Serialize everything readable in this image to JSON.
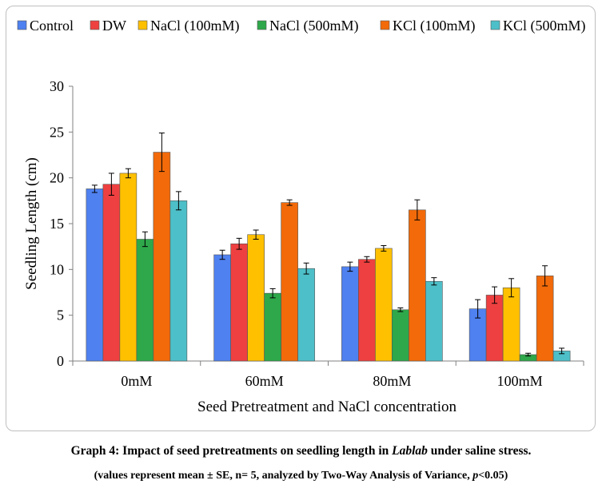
{
  "chart_data": {
    "type": "bar",
    "categories": [
      "0mM",
      "60mM",
      "80mM",
      "100mM"
    ],
    "series": [
      {
        "name": "Control",
        "color": "#4F81F0",
        "values": [
          18.8,
          11.6,
          10.3,
          5.7
        ],
        "errors": [
          0.4,
          0.5,
          0.5,
          1.0
        ]
      },
      {
        "name": "DW",
        "color": "#EE4040",
        "values": [
          19.3,
          12.8,
          11.1,
          7.2
        ],
        "errors": [
          1.2,
          0.6,
          0.3,
          0.9
        ]
      },
      {
        "name": "NaCl (100mM)",
        "color": "#FFC000",
        "values": [
          20.5,
          13.8,
          12.3,
          8.0
        ],
        "errors": [
          0.5,
          0.5,
          0.3,
          1.0
        ]
      },
      {
        "name": "NaCl (500mM)",
        "color": "#2EA84A",
        "values": [
          13.3,
          7.4,
          5.6,
          0.7
        ],
        "errors": [
          0.8,
          0.5,
          0.2,
          0.15
        ]
      },
      {
        "name": "KCl (100mM)",
        "color": "#F26A0A",
        "values": [
          22.8,
          17.3,
          16.5,
          9.3
        ],
        "errors": [
          2.1,
          0.3,
          1.1,
          1.1
        ]
      },
      {
        "name": "KCl (500mM)",
        "color": "#4DBFC8",
        "values": [
          17.5,
          10.1,
          8.7,
          1.1
        ],
        "errors": [
          1.0,
          0.6,
          0.4,
          0.3
        ]
      }
    ],
    "xlabel": "Seed Pretreatment and NaCl concentration",
    "ylabel": "Seedling Length (cm)",
    "ylim": [
      0,
      30
    ],
    "yticks": [
      "0",
      "5",
      "10",
      "15",
      "20",
      "25",
      "30"
    ],
    "legend_position": "top",
    "grid": false
  },
  "caption": {
    "line1_prefix": "Graph 4: Impact of seed pretreatments on seedling length in ",
    "line1_italic": "Lablab",
    "line1_suffix": " under saline stress.",
    "line2_prefix": "(values represent mean ± SE, n= 5, analyzed by Two-Way Analysis of Variance, ",
    "line2_italic": "p",
    "line2_suffix": "<0.05)"
  }
}
